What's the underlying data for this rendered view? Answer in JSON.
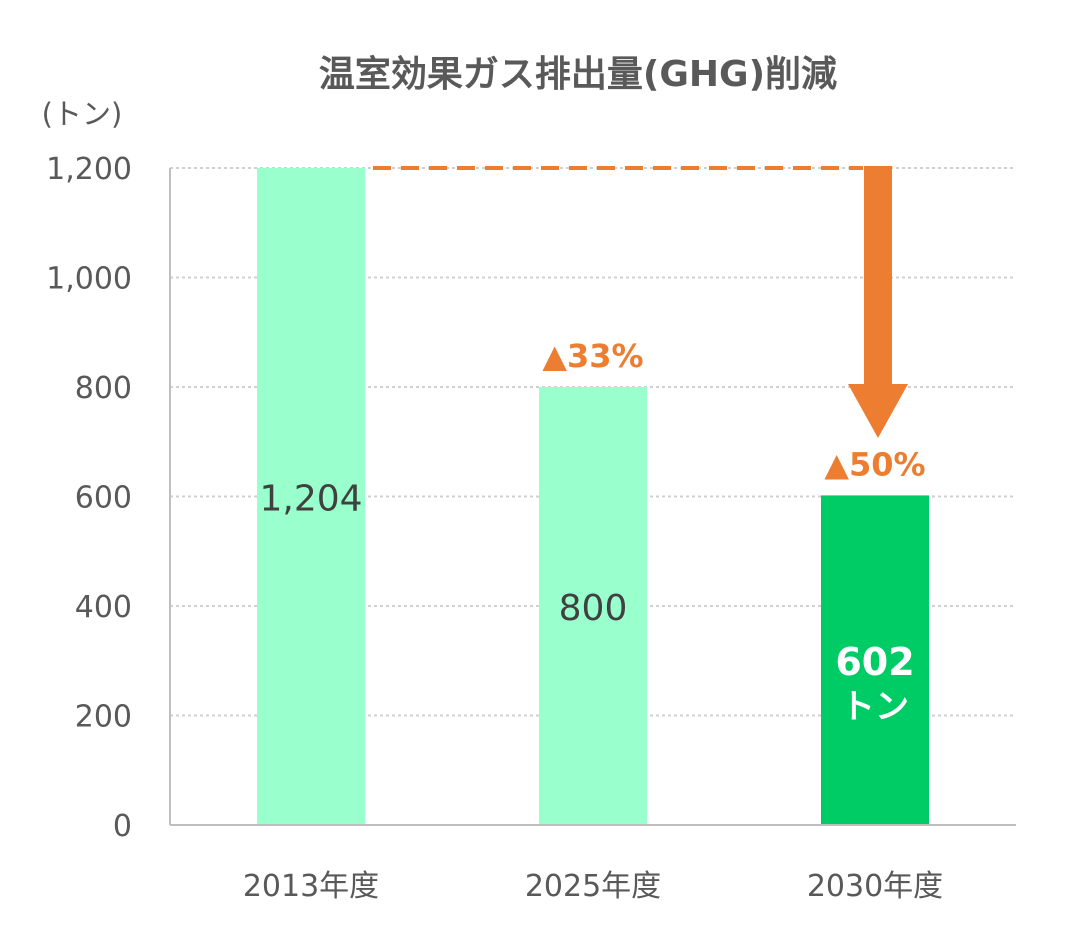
{
  "chart_data": {
    "type": "bar",
    "title": "温室効果ガス排出量(GHG)削減",
    "unit_label": "(トン)",
    "categories": [
      "2013年度",
      "2025年度",
      "2030年度"
    ],
    "values": [
      1204,
      800,
      602
    ],
    "value_labels": [
      "1,204",
      "800",
      "602"
    ],
    "value_unit_labels": [
      "",
      "",
      "トン"
    ],
    "reduction_labels": [
      "",
      "▲33%",
      "▲50%"
    ],
    "yticks": [
      "0",
      "200",
      "400",
      "600",
      "800",
      "1,000",
      "1,200"
    ],
    "ytick_values": [
      0,
      200,
      400,
      600,
      800,
      1000,
      1200
    ],
    "ylim": [
      0,
      1200
    ],
    "grid": true,
    "colors": {
      "bar_light": "#99FFCC",
      "bar_highlight": "#00CC66",
      "accent": "#ED7D31",
      "text": "#595959",
      "label_dark": "#404040",
      "label_light": "#FFFFFF",
      "grid": "#D0D0D0",
      "axis": "#BFBFBF"
    },
    "highlight_index": 2
  }
}
